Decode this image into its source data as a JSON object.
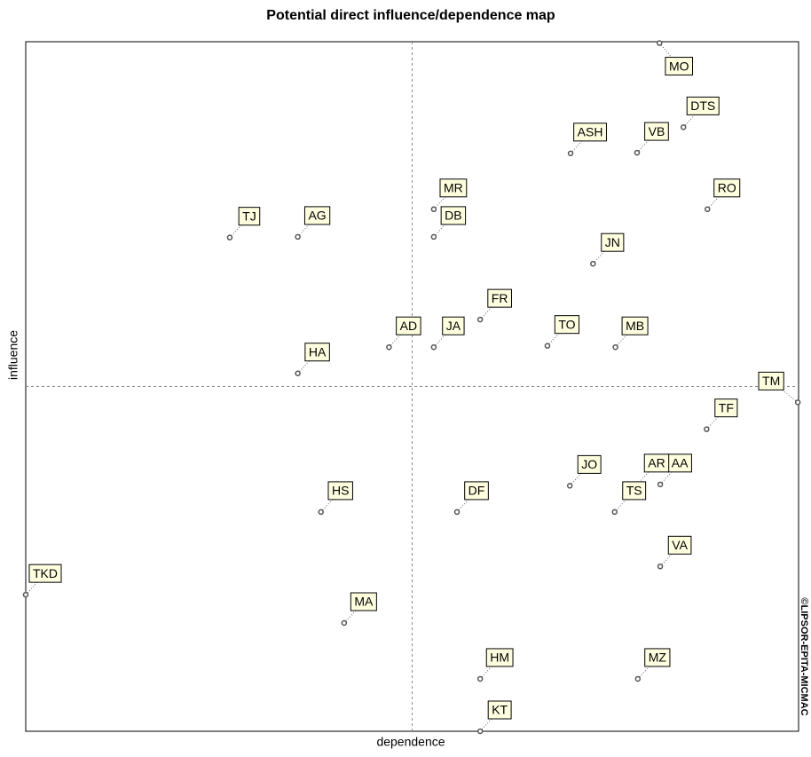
{
  "chart_data": {
    "type": "scatter",
    "title": "Potential direct influence/dependence map",
    "xlabel": "dependence",
    "ylabel": "influence",
    "watermark": "©LIPSOR-EPITA-MICMAC",
    "xlim": [
      0,
      100
    ],
    "ylim": [
      0,
      100
    ],
    "point_labels": [
      "MO",
      "DTS",
      "ASH",
      "VB",
      "RO",
      "MR",
      "DB",
      "TJ",
      "AG",
      "JN",
      "FR",
      "AD",
      "JA",
      "TO",
      "MB",
      "HA",
      "TM",
      "TF",
      "AA",
      "JO",
      "AR",
      "HS",
      "DF",
      "TS",
      "VA",
      "TKD",
      "MA",
      "HM",
      "MZ",
      "KT"
    ],
    "x": [
      82.0,
      85.1,
      70.5,
      79.1,
      88.2,
      52.8,
      52.8,
      26.4,
      35.2,
      73.4,
      58.8,
      47.0,
      52.8,
      67.5,
      76.3,
      35.2,
      99.9,
      88.1,
      82.1,
      70.4,
      79.1,
      38.2,
      55.8,
      76.2,
      82.1,
      0,
      41.2,
      58.8,
      79.2,
      58.8
    ],
    "series": [
      {
        "color": "#555555",
        "values": [
          99.8,
          87.6,
          83.8,
          83.9,
          75.7,
          75.7,
          71.7,
          71.6,
          71.7,
          67.8,
          59.7,
          55.7,
          55.7,
          55.9,
          55.7,
          51.9,
          47.7,
          43.8,
          35.8,
          35.6,
          35.8,
          31.8,
          31.8,
          31.8,
          23.9,
          19.8,
          15.7,
          7.6,
          7.6,
          0
        ]
      }
    ]
  }
}
